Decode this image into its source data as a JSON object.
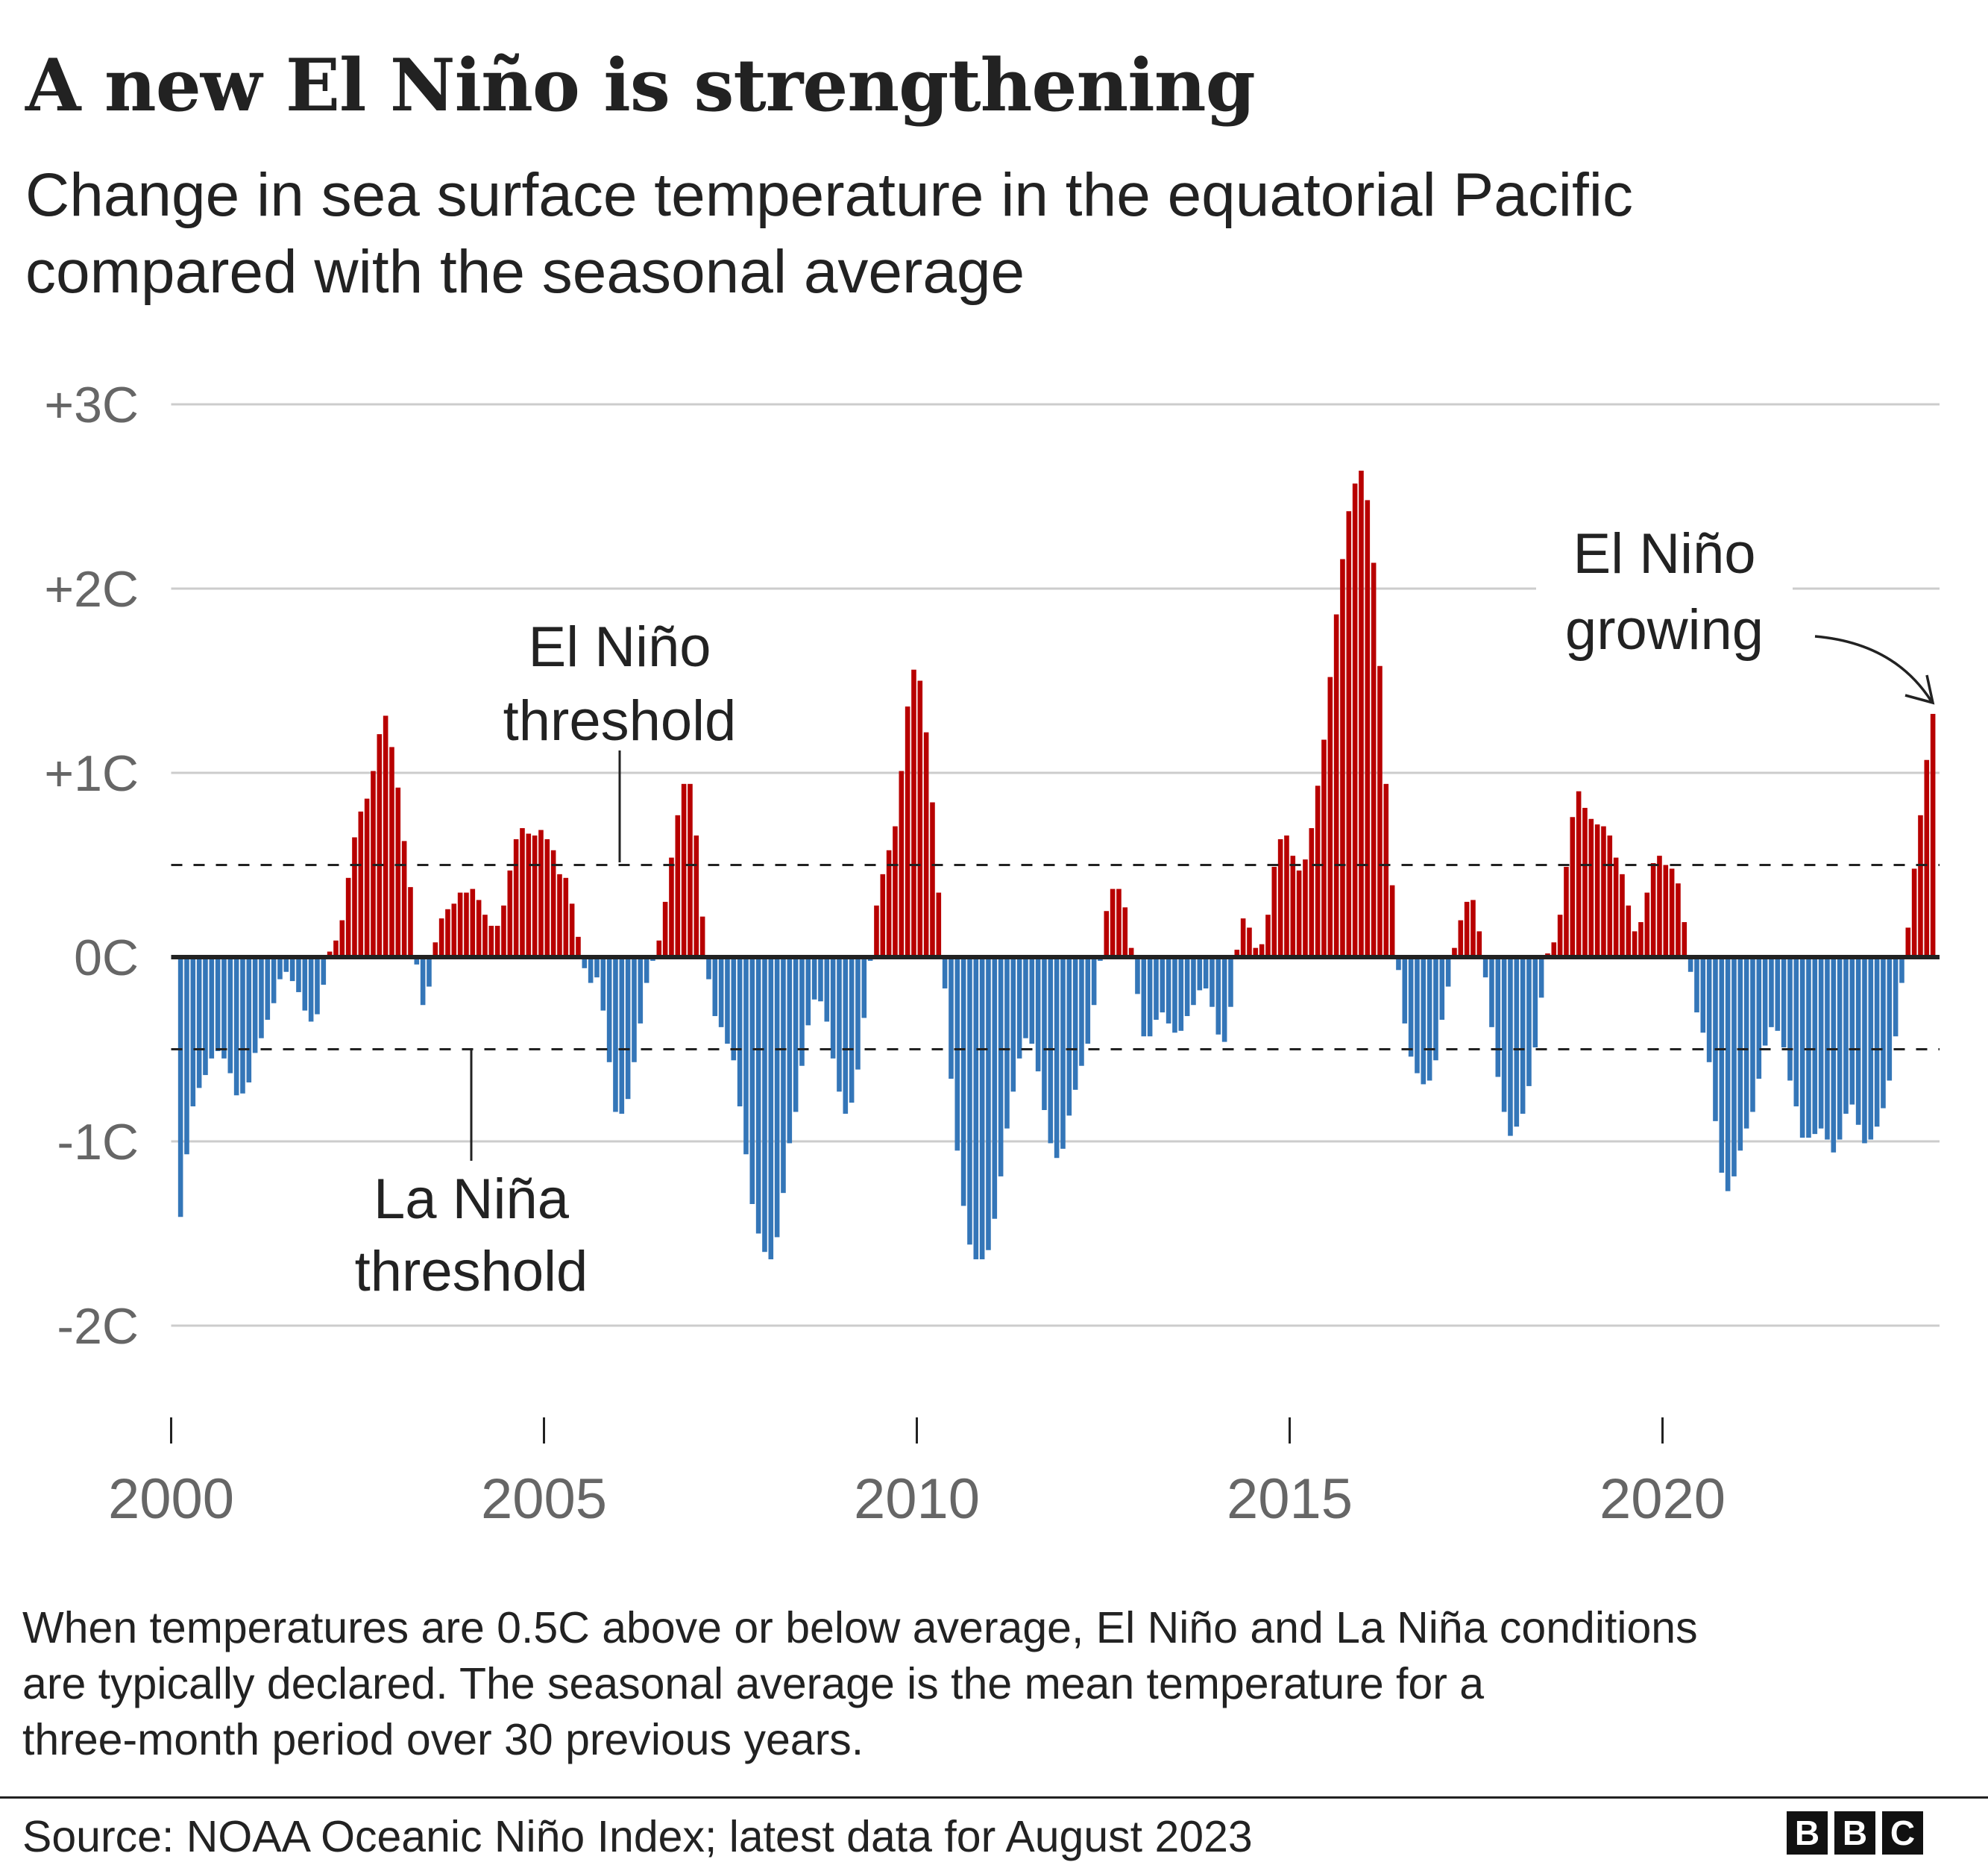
{
  "title": "A new El Niño is strengthening",
  "subtitle_lines": [
    "Change in sea surface temperature in the equatorial Pacific",
    "compared with the seasonal average"
  ],
  "footnote_lines": [
    "When temperatures are 0.5C above or below average, El Niño and La Niña conditions",
    "are typically declared. The seasonal average is the mean temperature for a",
    "three-month period over 30 previous years."
  ],
  "source": "Source: NOAA Oceanic Niño Index; latest data for August 2023",
  "logo": [
    "B",
    "B",
    "C"
  ],
  "chart_data": {
    "type": "bar",
    "title": "A new El Niño is strengthening",
    "xlabel": "",
    "ylabel": "",
    "frequency": "monthly",
    "last_month": "2023-08",
    "ylim": [
      -2.5,
      3
    ],
    "y_ticks": [
      {
        "value": 3,
        "label": "+3C"
      },
      {
        "value": 2,
        "label": "+2C"
      },
      {
        "value": 1,
        "label": "+1C"
      },
      {
        "value": 0,
        "label": "0C"
      },
      {
        "value": -1,
        "label": "-1C"
      },
      {
        "value": -2,
        "label": "-2C"
      }
    ],
    "x_ticks": [
      {
        "value": 2000,
        "label": "2000"
      },
      {
        "value": 2005,
        "label": "2005"
      },
      {
        "value": 2010,
        "label": "2010"
      },
      {
        "value": 2015,
        "label": "2015"
      },
      {
        "value": 2020,
        "label": "2020"
      }
    ],
    "grid": true,
    "colors": {
      "positive": "#b80000",
      "negative": "#3476b8",
      "grid": "#cccccc",
      "zero_line": "#222222"
    },
    "thresholds": [
      {
        "value": 0.5,
        "label_lines": [
          "El Niño",
          "threshold"
        ]
      },
      {
        "value": -0.5,
        "label_lines": [
          "La Niña",
          "threshold"
        ]
      }
    ],
    "annotation": {
      "label_lines": [
        "El Niño",
        "growing"
      ]
    },
    "values": [
      -1.41,
      -1.07,
      -0.81,
      -0.71,
      -0.64,
      -0.55,
      -0.51,
      -0.55,
      -0.63,
      -0.75,
      -0.74,
      -0.68,
      -0.52,
      -0.44,
      -0.34,
      -0.25,
      -0.12,
      -0.08,
      -0.13,
      -0.19,
      -0.29,
      -0.35,
      -0.31,
      -0.15,
      0.03,
      0.09,
      0.2,
      0.43,
      0.65,
      0.79,
      0.86,
      1.01,
      1.21,
      1.31,
      1.14,
      0.92,
      0.63,
      0.38,
      -0.04,
      -0.26,
      -0.16,
      0.08,
      0.21,
      0.26,
      0.29,
      0.35,
      0.35,
      0.37,
      0.31,
      0.23,
      0.17,
      0.17,
      0.28,
      0.47,
      0.64,
      0.7,
      0.67,
      0.66,
      0.69,
      0.64,
      0.58,
      0.45,
      0.43,
      0.29,
      0.11,
      -0.06,
      -0.14,
      -0.11,
      -0.29,
      -0.57,
      -0.84,
      -0.85,
      -0.77,
      -0.57,
      -0.36,
      -0.14,
      -0.02,
      0.09,
      0.3,
      0.54,
      0.77,
      0.94,
      0.94,
      0.66,
      0.22,
      -0.12,
      -0.32,
      -0.38,
      -0.47,
      -0.56,
      -0.81,
      -1.07,
      -1.34,
      -1.5,
      -1.6,
      -1.64,
      -1.52,
      -1.28,
      -1.01,
      -0.84,
      -0.59,
      -0.37,
      -0.23,
      -0.24,
      -0.35,
      -0.55,
      -0.73,
      -0.85,
      -0.79,
      -0.61,
      -0.33,
      -0.02,
      0.28,
      0.45,
      0.58,
      0.71,
      1.01,
      1.36,
      1.56,
      1.5,
      1.22,
      0.84,
      0.35,
      -0.17,
      -0.66,
      -1.05,
      -1.35,
      -1.56,
      -1.64,
      -1.64,
      -1.59,
      -1.42,
      -1.19,
      -0.93,
      -0.73,
      -0.55,
      -0.44,
      -0.47,
      -0.62,
      -0.83,
      -1.01,
      -1.09,
      -1.04,
      -0.86,
      -0.72,
      -0.59,
      -0.47,
      -0.26,
      -0.02,
      0.25,
      0.37,
      0.37,
      0.27,
      0.05,
      -0.2,
      -0.43,
      -0.43,
      -0.34,
      -0.3,
      -0.36,
      -0.41,
      -0.4,
      -0.32,
      -0.26,
      -0.18,
      -0.17,
      -0.27,
      -0.42,
      -0.46,
      -0.27,
      0.04,
      0.21,
      0.16,
      0.05,
      0.07,
      0.23,
      0.49,
      0.64,
      0.66,
      0.55,
      0.47,
      0.53,
      0.7,
      0.93,
      1.18,
      1.52,
      1.86,
      2.16,
      2.42,
      2.57,
      2.64,
      2.48,
      2.14,
      1.58,
      0.94,
      0.39,
      -0.07,
      -0.36,
      -0.54,
      -0.63,
      -0.69,
      -0.67,
      -0.56,
      -0.34,
      -0.16,
      0.05,
      0.2,
      0.3,
      0.31,
      0.14,
      -0.11,
      -0.38,
      -0.65,
      -0.84,
      -0.97,
      -0.92,
      -0.85,
      -0.7,
      -0.49,
      -0.22,
      0.02,
      0.08,
      0.23,
      0.49,
      0.76,
      0.9,
      0.81,
      0.75,
      0.72,
      0.71,
      0.66,
      0.54,
      0.45,
      0.28,
      0.14,
      0.19,
      0.35,
      0.51,
      0.55,
      0.5,
      0.48,
      0.4,
      0.19,
      -0.08,
      -0.3,
      -0.41,
      -0.57,
      -0.89,
      -1.17,
      -1.27,
      -1.19,
      -1.05,
      -0.93,
      -0.84,
      -0.66,
      -0.48,
      -0.38,
      -0.4,
      -0.49,
      -0.67,
      -0.81,
      -0.98,
      -0.98,
      -0.96,
      -0.93,
      -0.99,
      -1.06,
      -0.99,
      -0.85,
      -0.8,
      -0.91,
      -1.01,
      -0.99,
      -0.92,
      -0.82,
      -0.67,
      -0.43,
      -0.14,
      0.16,
      0.48,
      0.77,
      1.07,
      1.32
    ]
  }
}
